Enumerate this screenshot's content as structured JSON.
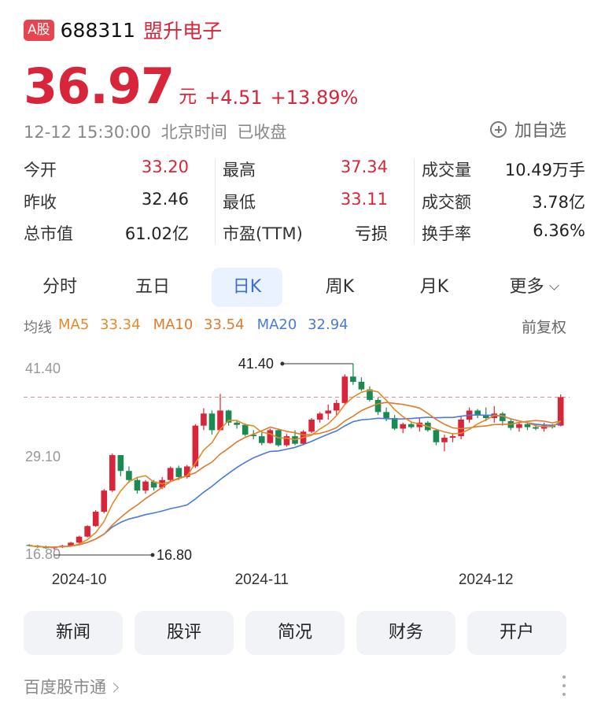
{
  "header": {
    "market_badge": "A股",
    "code": "688311",
    "name": "盟升电子"
  },
  "quote": {
    "price": "36.97",
    "unit": "元",
    "change": "+4.51",
    "change_pct": "+13.89%",
    "color_up": "#d8253a"
  },
  "status": {
    "time": "12-12 15:30:00",
    "zone": "北京时间",
    "state": "已收盘"
  },
  "watch": {
    "label": "加自选",
    "icon": "plus-circle-icon"
  },
  "stats": [
    [
      {
        "label": "今开",
        "value": "33.20",
        "red": true
      },
      {
        "label": "昨收",
        "value": "32.46",
        "red": false
      },
      {
        "label": "总市值",
        "value": "61.02亿",
        "red": false
      }
    ],
    [
      {
        "label": "最高",
        "value": "37.34",
        "red": true
      },
      {
        "label": "最低",
        "value": "33.11",
        "red": true
      },
      {
        "label": "市盈(TTM)",
        "value": "亏损",
        "red": false
      }
    ],
    [
      {
        "label": "成交量",
        "value": "10.49万手",
        "red": false
      },
      {
        "label": "成交额",
        "value": "3.78亿",
        "red": false
      },
      {
        "label": "换手率",
        "value": "6.36%",
        "red": false
      }
    ]
  ],
  "tabs": [
    "分时",
    "五日",
    "日K",
    "周K",
    "月K",
    "更多"
  ],
  "active_tab": "日K",
  "ma": {
    "label": "均线",
    "items": [
      {
        "name": "MA5",
        "value": "33.34",
        "color": "#e58a2a"
      },
      {
        "name": "MA10",
        "value": "33.54",
        "color": "#e07b2a"
      },
      {
        "name": "MA20",
        "value": "32.94",
        "color": "#4a7bd8"
      }
    ],
    "adjust": "前复权"
  },
  "chart_data": {
    "type": "candlestick",
    "y_tick_labels": [
      "41.40",
      "29.10",
      "16.80"
    ],
    "ylim": [
      16.8,
      41.4
    ],
    "x_tick_labels": [
      "2024-10",
      "2024-11",
      "2024-12"
    ],
    "max_label": "41.40",
    "min_label": "16.80",
    "last_close": 36.97,
    "up_color": "#d8253a",
    "down_color": "#1b8a52",
    "candles": [
      [
        17.4,
        17.5,
        17.2,
        17.3
      ],
      [
        17.3,
        17.4,
        17.0,
        17.1
      ],
      [
        17.1,
        17.3,
        16.9,
        17.0
      ],
      [
        17.0,
        17.2,
        16.8,
        17.1
      ],
      [
        17.1,
        17.4,
        17.0,
        17.3
      ],
      [
        17.3,
        17.8,
        17.2,
        17.7
      ],
      [
        17.7,
        18.6,
        17.5,
        18.5
      ],
      [
        18.5,
        20.0,
        18.4,
        19.9
      ],
      [
        19.9,
        22.0,
        19.8,
        21.8
      ],
      [
        21.8,
        24.8,
        21.6,
        24.6
      ],
      [
        24.6,
        29.5,
        24.4,
        29.3
      ],
      [
        29.3,
        29.3,
        26.5,
        27.2
      ],
      [
        27.2,
        27.8,
        25.6,
        26.0
      ],
      [
        26.0,
        26.4,
        24.2,
        24.6
      ],
      [
        24.6,
        26.0,
        24.2,
        25.8
      ],
      [
        25.8,
        26.0,
        24.6,
        25.0
      ],
      [
        25.0,
        26.4,
        24.8,
        26.0
      ],
      [
        26.0,
        27.8,
        25.8,
        27.6
      ],
      [
        27.6,
        27.9,
        26.0,
        26.4
      ],
      [
        26.4,
        28.0,
        26.2,
        27.8
      ],
      [
        27.8,
        33.4,
        27.6,
        33.2
      ],
      [
        33.2,
        35.5,
        32.6,
        34.8
      ],
      [
        34.8,
        35.2,
        32.0,
        32.6
      ],
      [
        32.6,
        37.4,
        32.6,
        35.2
      ],
      [
        35.2,
        35.3,
        33.2,
        33.6
      ],
      [
        33.6,
        33.9,
        32.8,
        33.3
      ],
      [
        33.3,
        33.5,
        31.8,
        32.0
      ],
      [
        32.0,
        32.6,
        31.4,
        31.8
      ],
      [
        31.8,
        32.6,
        30.6,
        30.9
      ],
      [
        30.9,
        32.8,
        30.8,
        32.6
      ],
      [
        32.6,
        32.7,
        30.4,
        30.6
      ],
      [
        30.6,
        32.1,
        30.4,
        31.8
      ],
      [
        31.8,
        32.6,
        30.6,
        30.8
      ],
      [
        30.8,
        32.6,
        30.6,
        32.4
      ],
      [
        32.4,
        34.2,
        32.2,
        34.0
      ],
      [
        34.0,
        35.0,
        33.6,
        34.8
      ],
      [
        34.8,
        36.0,
        34.0,
        35.2
      ],
      [
        35.2,
        36.6,
        34.6,
        36.2
      ],
      [
        36.2,
        40.0,
        36.0,
        39.7
      ],
      [
        39.7,
        41.4,
        38.6,
        39.0
      ],
      [
        39.0,
        39.6,
        37.8,
        38.0
      ],
      [
        38.0,
        38.4,
        36.4,
        36.6
      ],
      [
        36.6,
        36.9,
        34.6,
        35.0
      ],
      [
        35.0,
        35.6,
        33.8,
        34.2
      ],
      [
        34.2,
        34.6,
        32.6,
        32.8
      ],
      [
        32.8,
        33.6,
        32.2,
        33.4
      ],
      [
        33.4,
        33.6,
        32.8,
        33.0
      ],
      [
        33.0,
        34.2,
        32.4,
        33.6
      ],
      [
        33.6,
        33.8,
        32.4,
        32.6
      ],
      [
        32.6,
        32.8,
        30.6,
        31.0
      ],
      [
        31.0,
        32.0,
        29.8,
        31.6
      ],
      [
        31.6,
        32.2,
        31.0,
        31.8
      ],
      [
        31.8,
        34.4,
        31.4,
        34.0
      ],
      [
        34.0,
        35.6,
        33.6,
        35.2
      ],
      [
        35.2,
        35.4,
        34.2,
        34.6
      ],
      [
        34.6,
        35.6,
        33.8,
        34.2
      ],
      [
        34.2,
        35.8,
        33.6,
        34.8
      ],
      [
        34.8,
        35.0,
        33.2,
        33.8
      ],
      [
        33.8,
        34.0,
        32.6,
        32.9
      ],
      [
        32.9,
        33.6,
        32.4,
        33.4
      ],
      [
        33.4,
        33.6,
        32.6,
        33.0
      ],
      [
        33.0,
        33.4,
        32.6,
        32.8
      ],
      [
        32.8,
        33.6,
        32.4,
        33.2
      ],
      [
        33.2,
        33.4,
        32.8,
        33.0
      ],
      [
        33.2,
        37.34,
        33.11,
        36.97
      ]
    ]
  },
  "actions": [
    "新闻",
    "股评",
    "简况",
    "财务",
    "开户"
  ],
  "footer": {
    "label": "百度股市通"
  }
}
